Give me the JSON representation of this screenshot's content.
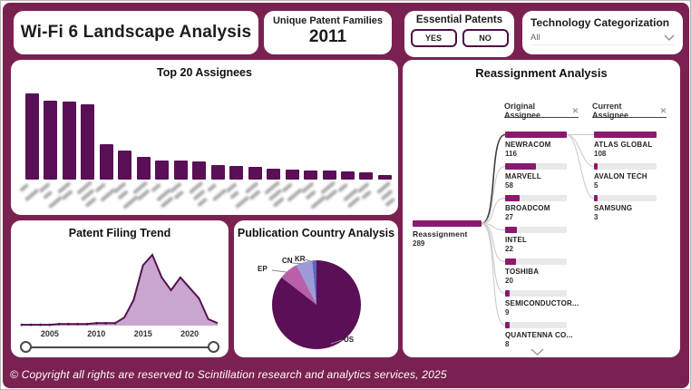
{
  "app": {
    "title": "Wi-Fi 6 Landscape Analysis"
  },
  "kpi": {
    "label": "Unique Patent Families",
    "value": "2011"
  },
  "essential_patents": {
    "label": "Essential Patents",
    "options": [
      "YES",
      "NO"
    ]
  },
  "technology_categorization": {
    "label": "Technology Categorization",
    "selected": "All"
  },
  "footer": {
    "copyright": "© Copyright all rights are reserved to Scintillation research and analytics services, 2025"
  },
  "colors": {
    "background": "#7B2151",
    "bar": "#5A0F56",
    "area_fill": "#C9A6CF",
    "area_stroke": "#551250",
    "tree_bar": "#8A1A6E",
    "tree_track": "#E9E9E9",
    "pie": {
      "US": "#5A0F56",
      "EP": "#B75FA9",
      "CN": "#9E9BD8",
      "KR": "#5A66C2"
    }
  },
  "chart_data": [
    {
      "id": "top20-assignees",
      "type": "bar",
      "title": "Top 20 Assignees",
      "x_labels_blurred": true,
      "values": [
        100,
        92,
        91,
        87,
        41,
        34,
        26,
        22,
        22,
        21,
        17,
        16,
        15,
        13,
        12,
        11,
        11,
        9,
        8,
        5
      ],
      "ylim": [
        0,
        100
      ],
      "note": "relative bar heights (no value axis shown); assignee names are blurred in the source image"
    },
    {
      "id": "patent-filing-trend",
      "type": "area",
      "title": "Patent Filing Trend",
      "x": [
        2002,
        2003,
        2004,
        2005,
        2006,
        2007,
        2008,
        2009,
        2010,
        2011,
        2012,
        2013,
        2014,
        2015,
        2016,
        2017,
        2018,
        2019,
        2020,
        2021,
        2022,
        2023
      ],
      "values": [
        1,
        1,
        1,
        1,
        2,
        2,
        2,
        2,
        3,
        3,
        3,
        10,
        32,
        75,
        88,
        60,
        44,
        60,
        47,
        34,
        8,
        3
      ],
      "x_ticks": [
        "2005",
        "2010",
        "2015",
        "2020"
      ],
      "note": "relative filing volume, no y-axis shown"
    },
    {
      "id": "publication-country",
      "type": "pie",
      "title": "Publication Country Analysis",
      "labels": [
        "US",
        "EP",
        "CN",
        "KR"
      ],
      "values": [
        85.5,
        7,
        6,
        1.5
      ],
      "unit": "percent-estimated"
    },
    {
      "id": "reassignment",
      "type": "tree",
      "title": "Reassignment Analysis",
      "root": {
        "label": "Reassignment",
        "value": "289"
      },
      "levels": [
        {
          "name": "Original Assignee"
        },
        {
          "name": "Current Assignee"
        }
      ],
      "original_assignees": [
        {
          "name": "NEWRACOM",
          "value": "116",
          "selected": true
        },
        {
          "name": "MARVELL",
          "value": "58"
        },
        {
          "name": "BROADCOM",
          "value": "27"
        },
        {
          "name": "INTEL",
          "value": "22"
        },
        {
          "name": "TOSHIBA",
          "value": "20"
        },
        {
          "name": "SEMICONDUCTOR...",
          "value": "9"
        },
        {
          "name": "QUANTENNA CO...",
          "value": "8"
        }
      ],
      "current_assignees": [
        {
          "name": "ATLAS GLOBAL",
          "value": "108"
        },
        {
          "name": "AVALON TECH",
          "value": "5"
        },
        {
          "name": "SAMSUNG",
          "value": "3"
        }
      ]
    }
  ]
}
